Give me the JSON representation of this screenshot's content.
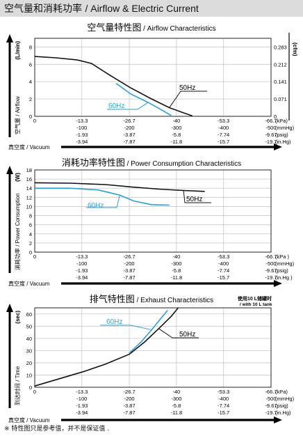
{
  "header": {
    "title_cn": "空气量和消耗功率",
    "title_en": "/ Airflow & Electric Current"
  },
  "footnote": "※ 特性图只是参考值，并不是保证值 .",
  "x_axis": {
    "ticks": [
      {
        "kpa": "0",
        "mmhg": "",
        "psig": "",
        "inhg": ""
      },
      {
        "kpa": "-13.3",
        "mmhg": "-100",
        "psig": "-1.93",
        "inhg": "-3.94"
      },
      {
        "kpa": "-26.7",
        "mmhg": "-200",
        "psig": "-3.87",
        "inhg": "-7.87"
      },
      {
        "kpa": "-40",
        "mmhg": "-300",
        "psig": "-5.8",
        "inhg": "-11.8"
      },
      {
        "kpa": "-53.3",
        "mmhg": "-400",
        "psig": "-7.74",
        "inhg": "-15.7"
      },
      {
        "kpa": "-66.7",
        "mmhg": "-500",
        "psig": "-9.67",
        "inhg": "-19.7"
      }
    ],
    "units": [
      "(kPa)",
      "(mmHg)",
      "(psig)",
      "(in.Hg)"
    ],
    "units_spaced": [
      "(kPa )",
      "(mmHg)",
      "(psig)",
      "(in.Hg )"
    ],
    "vacuum_label": "真空度 / Vacuum"
  },
  "chart_data": [
    {
      "type": "line",
      "title": "空气量特性图",
      "title_en": "/ Airflow Characteristics",
      "ylabel": "空气量 / Airflow",
      "yunit": "(L/min)",
      "y2unit": "(cfm)",
      "ylim": [
        0,
        9
      ],
      "yticks": [
        "0",
        "2",
        "4",
        "6",
        "8"
      ],
      "y2ticks": [
        "0",
        "0.071",
        "0.141",
        "0.212",
        "0.283"
      ],
      "y2tick_values": [
        0,
        2,
        4,
        6,
        8
      ],
      "xlim": [
        0,
        -66.7
      ],
      "grid": true,
      "series": [
        {
          "name": "50Hz",
          "color": "#111111",
          "x": [
            0,
            -6,
            -12,
            -16,
            -21,
            -27,
            -33,
            -38,
            -42,
            -44.5
          ],
          "y": [
            6.9,
            6.75,
            6.5,
            6.1,
            4.8,
            3.3,
            2.0,
            1.0,
            0.4,
            0.05
          ]
        },
        {
          "name": "60Hz",
          "color": "#2a9fd6",
          "x": [
            -23,
            -27,
            -32,
            -36,
            -38.5
          ],
          "y": [
            3.8,
            2.6,
            1.6,
            0.7,
            0.1
          ]
        }
      ]
    },
    {
      "type": "line",
      "title": "消耗功率特性图",
      "title_en": "/ Power Consumption Characteristics",
      "ylabel": "消耗功率 / Power Consumption",
      "yunit": "(W)",
      "ylim": [
        0,
        18
      ],
      "yticks": [
        "0",
        "2",
        "4",
        "6",
        "8",
        "10",
        "12",
        "14",
        "16",
        "18"
      ],
      "xlim": [
        0,
        -66.7
      ],
      "grid": true,
      "series": [
        {
          "name": "50Hz",
          "color": "#111111",
          "x": [
            0,
            -10,
            -20,
            -27,
            -35,
            -42,
            -48
          ],
          "y": [
            15.2,
            15.1,
            14.8,
            14.3,
            13.8,
            13.5,
            13.3
          ]
        },
        {
          "name": "60Hz",
          "color": "#2a9fd6",
          "x": [
            0,
            -10,
            -18,
            -24,
            -28,
            -33,
            -38
          ],
          "y": [
            14.0,
            14.0,
            13.6,
            12.5,
            11.2,
            10.4,
            10.3
          ]
        }
      ]
    },
    {
      "type": "line",
      "title": "排气特性图",
      "title_en": "/ Exhaust Characteristics",
      "note_cn": "使用10 L储罐时",
      "note_en": "/ with 10 L tank",
      "ylabel": "到达时间 / Time",
      "yunit": "(sec)",
      "ylim": [
        0,
        65
      ],
      "yticks": [
        "0",
        "10",
        "20",
        "30",
        "40",
        "50",
        "60"
      ],
      "xlim": [
        0,
        -66.7
      ],
      "grid": true,
      "series": [
        {
          "name": "50Hz",
          "color": "#111111",
          "x": [
            0,
            -7,
            -14,
            -20,
            -26.7,
            -31,
            -35,
            -38.5,
            -40.5
          ],
          "y": [
            1,
            7,
            13,
            19,
            27,
            37,
            48,
            58,
            65
          ]
        },
        {
          "name": "60Hz",
          "color": "#2a9fd6",
          "x": [
            -26.7,
            -30,
            -33,
            -35.5,
            -37.5
          ],
          "y": [
            28,
            37,
            47,
            56,
            63
          ]
        }
      ]
    }
  ]
}
